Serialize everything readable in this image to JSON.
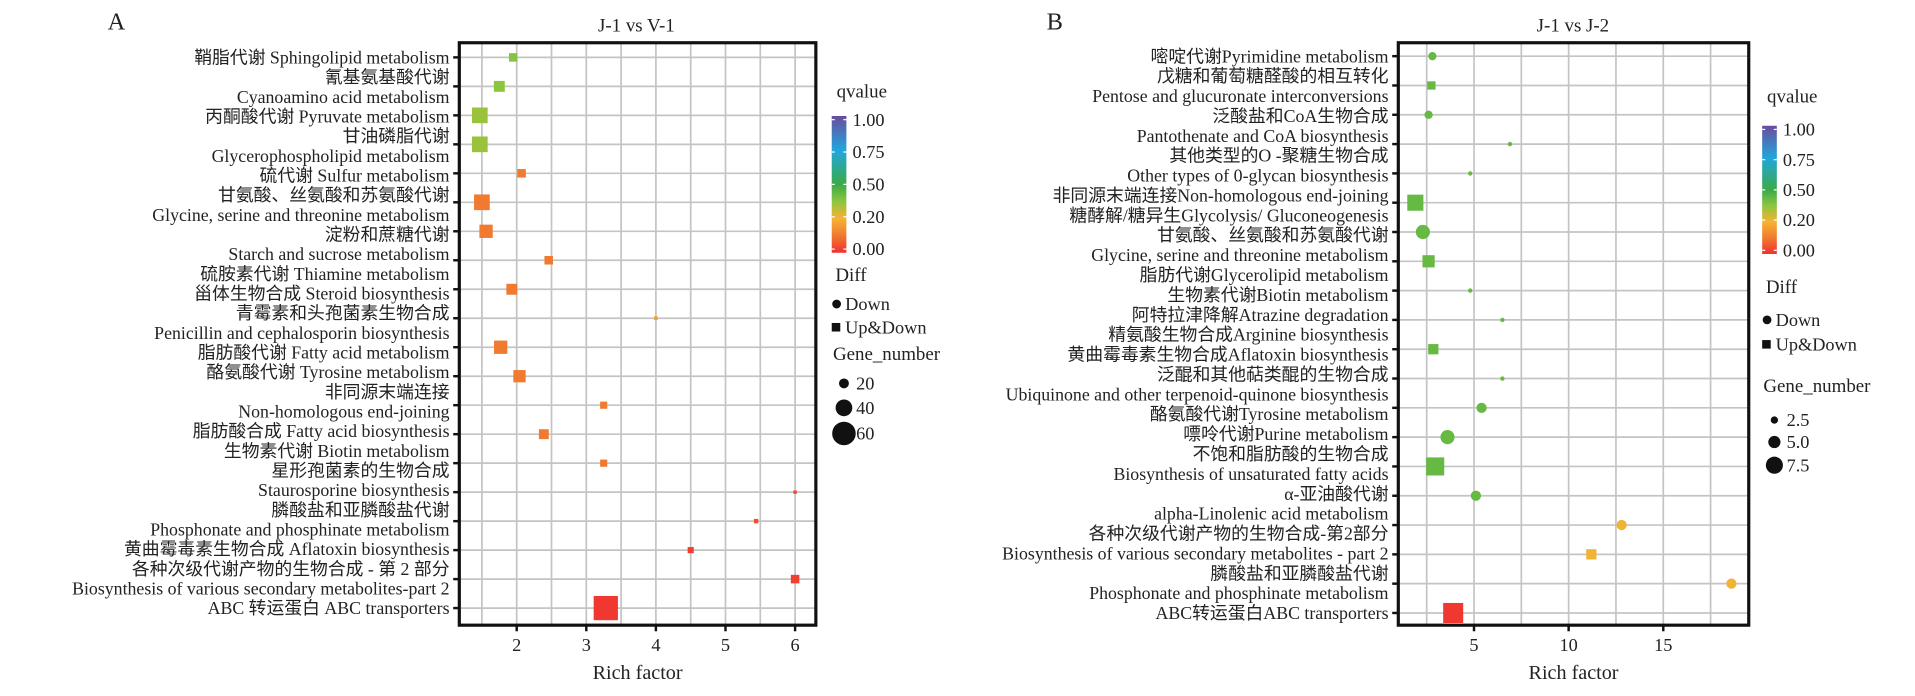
{
  "colors": {
    "qvalue_scale": [
      "#f03030",
      "#f07a30",
      "#f7b232",
      "#8cc63f",
      "#3aaa48",
      "#22a6dd",
      "#6a4c9c"
    ],
    "grid": "#c4c4c4",
    "axis": "#111111"
  },
  "chart_data": [
    {
      "panel_label": "A",
      "type": "scatter",
      "title": "J-1 vs V-1",
      "xlabel": "Rich factor",
      "ylabel": "",
      "x_ticks": [
        2,
        3,
        4,
        5,
        6
      ],
      "xlim": [
        1.18,
        6.3
      ],
      "grid": true,
      "legend_placement": "right",
      "y_label_lines": [
        "鞘脂代谢 Sphingolipid metabolism",
        "氰基氨基酸代谢",
        "Cyanoamino acid metabolism",
        "丙酮酸代谢 Pyruvate metabolism",
        "甘油磷脂代谢",
        "Glycerophospholipid metabolism",
        "硫代谢 Sulfur metabolism",
        "甘氨酸、丝氨酸和苏氨酸代谢",
        "Glycine, serine and threonine metabolism",
        "淀粉和蔗糖代谢",
        "Starch and sucrose metabolism",
        "硫胺素代谢 Thiamine metabolism",
        "甾体生物合成 Steroid biosynthesis",
        "青霉素和头孢菌素生物合成",
        "Penicillin and cephalosporin biosynthesis",
        "脂肪酸代谢 Fatty acid metabolism",
        "酪氨酸代谢 Tyrosine metabolism",
        "非同源末端连接",
        "Non-homologous end-joining",
        "脂肪酸合成 Fatty acid biosynthesis",
        "生物素代谢 Biotin metabolism",
        "星形孢菌素的生物合成",
        "Staurosporine biosynthesis",
        "膦酸盐和亚膦酸盐代谢",
        "Phosphonate and phosphinate metabolism",
        "黄曲霉毒素生物合成 Aflatoxin biosynthesis",
        "各种次级代谢产物的生物合成 - 第 2 部分",
        "Biosynthesis of various secondary metabolites-part 2",
        "ABC 转运蛋白 ABC transporters"
      ],
      "points": [
        {
          "pathway": "Sphingolipid metabolism",
          "rich_factor": 1.95,
          "qvalue": 0.36,
          "gene_number": 16,
          "diff": "Up&Down"
        },
        {
          "pathway": "Cyanoamino acid metabolism",
          "rich_factor": 1.75,
          "qvalue": 0.35,
          "gene_number": 23,
          "diff": "Up&Down"
        },
        {
          "pathway": "Pyruvate metabolism",
          "rich_factor": 1.47,
          "qvalue": 0.33,
          "gene_number": 37,
          "diff": "Up&Down"
        },
        {
          "pathway": "Glycerophospholipid metabolism",
          "rich_factor": 1.47,
          "qvalue": 0.33,
          "gene_number": 37,
          "diff": "Up&Down"
        },
        {
          "pathway": "Sulfur metabolism",
          "rich_factor": 2.07,
          "qvalue": 0.1,
          "gene_number": 16,
          "diff": "Up&Down"
        },
        {
          "pathway": "Glycine, serine and threonine metabolism",
          "rich_factor": 1.5,
          "qvalue": 0.1,
          "gene_number": 37,
          "diff": "Up&Down"
        },
        {
          "pathway": "Starch and sucrose metabolism",
          "rich_factor": 1.56,
          "qvalue": 0.1,
          "gene_number": 30,
          "diff": "Up&Down"
        },
        {
          "pathway": "Thiamine metabolism",
          "rich_factor": 2.46,
          "qvalue": 0.1,
          "gene_number": 16,
          "diff": "Up&Down"
        },
        {
          "pathway": "Steroid biosynthesis",
          "rich_factor": 1.93,
          "qvalue": 0.1,
          "gene_number": 23,
          "diff": "Up&Down"
        },
        {
          "pathway": "Penicillin and cephalosporin biosynthesis",
          "rich_factor": 4.0,
          "qvalue": 0.17,
          "gene_number": 2,
          "diff": "Up&Down"
        },
        {
          "pathway": "Fatty acid metabolism",
          "rich_factor": 1.77,
          "qvalue": 0.1,
          "gene_number": 30,
          "diff": "Up&Down"
        },
        {
          "pathway": "Tyrosine metabolism",
          "rich_factor": 2.04,
          "qvalue": 0.1,
          "gene_number": 27,
          "diff": "Up&Down"
        },
        {
          "pathway": "Non-homologous end-joining",
          "rich_factor": 3.25,
          "qvalue": 0.1,
          "gene_number": 12,
          "diff": "Up&Down"
        },
        {
          "pathway": "Fatty acid biosynthesis",
          "rich_factor": 2.39,
          "qvalue": 0.1,
          "gene_number": 20,
          "diff": "Up&Down"
        },
        {
          "pathway": "Biotin metabolism",
          "rich_factor": 3.25,
          "qvalue": 0.1,
          "gene_number": 12,
          "diff": "Up&Down"
        },
        {
          "pathway": "Staurosporine biosynthesis",
          "rich_factor": 6.0,
          "qvalue": 0.03,
          "gene_number": 1,
          "diff": "Up&Down"
        },
        {
          "pathway": "Phosphonate and phosphinate metabolism",
          "rich_factor": 5.44,
          "qvalue": 0.04,
          "gene_number": 4,
          "diff": "Up&Down"
        },
        {
          "pathway": "Aflatoxin biosynthesis",
          "rich_factor": 4.5,
          "qvalue": 0.02,
          "gene_number": 9,
          "diff": "Up&Down"
        },
        {
          "pathway": "Biosynthesis of various secondary metabolites-part 2",
          "rich_factor": 6.0,
          "qvalue": 0.02,
          "gene_number": 16,
          "diff": "Up&Down"
        },
        {
          "pathway": "ABC transporters",
          "rich_factor": 3.28,
          "qvalue": 0.01,
          "gene_number": 62,
          "diff": "Up&Down"
        }
      ],
      "legend": {
        "color_title": "qvalue",
        "color_labels": [
          "1.00",
          "0.75",
          "0.50",
          "0.20",
          "0.00"
        ],
        "shape_title": "Diff",
        "shape_items": [
          {
            "label": "Down",
            "shape": "circle"
          },
          {
            "label": "Up&Down",
            "shape": "square"
          }
        ],
        "size_title": "Gene_number",
        "size_items": [
          {
            "label": "20",
            "value": 20
          },
          {
            "label": "40",
            "value": 40
          },
          {
            "label": "60",
            "value": 60
          }
        ]
      }
    },
    {
      "panel_label": "B",
      "type": "scatter",
      "title": "J-1 vs J-2",
      "xlabel": "Rich factor",
      "ylabel": "",
      "x_ticks": [
        5,
        10,
        15
      ],
      "xlim": [
        1.0,
        19.5
      ],
      "grid": true,
      "legend_placement": "right",
      "y_label_lines": [
        "嘧啶代谢Pyrimidine metabolism",
        "戊糖和葡萄糖醛酸的相互转化",
        "Pentose and glucuronate interconversions",
        "泛酸盐和CoA生物合成",
        "Pantothenate and CoA biosynthesis",
        "其他类型的O -聚糖生物合成",
        "Other types of 0-glycan biosynthesis",
        "非同源末端连接Non-homologous end-joining",
        "糖酵解/糖异生Glycolysis/ Gluconeogenesis",
        "甘氨酸、丝氨酸和苏氨酸代谢",
        "Glycine, serine and threonine metabolism",
        "脂肪代谢Glycerolipid metabolism",
        "生物素代谢Biotin metabolism",
        "阿特拉津降解Atrazine degradation",
        "精氨酸生物合成Arginine biosynthesis",
        "黄曲霉毒素生物合成Aflatoxin biosynthesis",
        "泛醌和其他萜类醌的生物合成",
        "Ubiquinone and other terpenoid-quinone biosynthesis",
        "酪氨酸代谢Tyrosine metabolism",
        "嘌呤代谢Purine metabolism",
        "不饱和脂肪酸的生物合成",
        "Biosynthesis of unsaturated fatty acids",
        "α-亚油酸代谢",
        "alpha-Linolenic acid metabolism",
        "各种次级代谢产物的生物合成-第2部分",
        "Biosynthesis of various secondary metabolites - part 2",
        "膦酸盐和亚膦酸盐代谢",
        "Phosphonate and phosphinate metabolism",
        "ABC转运蛋白ABC transporters"
      ],
      "points": [
        {
          "pathway": "Pyrimidine metabolism",
          "rich_factor": 2.8,
          "qvalue": 0.42,
          "gene_number": 3,
          "diff": "Down"
        },
        {
          "pathway": "Pentose and glucuronate interconversions",
          "rich_factor": 2.75,
          "qvalue": 0.42,
          "gene_number": 3,
          "diff": "Up&Down"
        },
        {
          "pathway": "Pantothenate and CoA biosynthesis",
          "rich_factor": 2.6,
          "qvalue": 0.42,
          "gene_number": 3,
          "diff": "Down"
        },
        {
          "pathway": "Other types of 0-glycan biosynthesis",
          "rich_factor": 6.9,
          "qvalue": 0.42,
          "gene_number": 1,
          "diff": "Down"
        },
        {
          "pathway": "Non-homologous end-joining",
          "rich_factor": 4.8,
          "qvalue": 0.42,
          "gene_number": 1,
          "diff": "Down"
        },
        {
          "pathway": "Glycolysis/ Gluconeogenesis",
          "rich_factor": 1.9,
          "qvalue": 0.42,
          "gene_number": 7,
          "diff": "Up&Down"
        },
        {
          "pathway": "Glycine, serine and threonine metabolism",
          "rich_factor": 2.3,
          "qvalue": 0.42,
          "gene_number": 6,
          "diff": "Down"
        },
        {
          "pathway": "Glycerolipid metabolism",
          "rich_factor": 2.6,
          "qvalue": 0.42,
          "gene_number": 5,
          "diff": "Up&Down"
        },
        {
          "pathway": "Biotin metabolism",
          "rich_factor": 4.8,
          "qvalue": 0.42,
          "gene_number": 1,
          "diff": "Down"
        },
        {
          "pathway": "Atrazine degradation",
          "rich_factor": 6.5,
          "qvalue": 0.42,
          "gene_number": 1,
          "diff": "Down"
        },
        {
          "pathway": "Arginine biosynthesis",
          "rich_factor": 2.85,
          "qvalue": 0.42,
          "gene_number": 4,
          "diff": "Up&Down"
        },
        {
          "pathway": "Aflatoxin biosynthesis",
          "rich_factor": 6.5,
          "qvalue": 0.42,
          "gene_number": 1,
          "diff": "Down"
        },
        {
          "pathway": "Ubiquinone and other terpenoid-quinone biosynthesis",
          "rich_factor": 5.4,
          "qvalue": 0.42,
          "gene_number": 4,
          "diff": "Down"
        },
        {
          "pathway": "Tyrosine metabolism",
          "rich_factor": 3.6,
          "qvalue": 0.42,
          "gene_number": 6,
          "diff": "Down"
        },
        {
          "pathway": "Purine metabolism",
          "rich_factor": 2.95,
          "qvalue": 0.42,
          "gene_number": 8,
          "diff": "Up&Down"
        },
        {
          "pathway": "Biosynthesis of unsaturated fatty acids",
          "rich_factor": 5.1,
          "qvalue": 0.42,
          "gene_number": 4,
          "diff": "Down"
        },
        {
          "pathway": "alpha-Linolenic acid metabolism",
          "rich_factor": 12.8,
          "qvalue": 0.21,
          "gene_number": 4,
          "diff": "Down"
        },
        {
          "pathway": "Biosynthesis of various secondary metabolites - part 2",
          "rich_factor": 11.2,
          "qvalue": 0.21,
          "gene_number": 4,
          "diff": "Up&Down"
        },
        {
          "pathway": "Phosphonate and phosphinate metabolism",
          "rich_factor": 18.6,
          "qvalue": 0.21,
          "gene_number": 4,
          "diff": "Down"
        },
        {
          "pathway": "ABC transporters",
          "rich_factor": 3.9,
          "qvalue": 0.01,
          "gene_number": 9,
          "diff": "Up&Down"
        }
      ],
      "legend": {
        "color_title": "qvalue",
        "color_labels": [
          "1.00",
          "0.75",
          "0.50",
          "0.20",
          "0.00"
        ],
        "shape_title": "Diff",
        "shape_items": [
          {
            "label": "Down",
            "shape": "circle"
          },
          {
            "label": "Up&Down",
            "shape": "square"
          }
        ],
        "size_title": "Gene_number",
        "size_items": [
          {
            "label": "2.5",
            "value": 2.5
          },
          {
            "label": "5.0",
            "value": 5.0
          },
          {
            "label": "7.5",
            "value": 7.5
          }
        ]
      }
    }
  ]
}
